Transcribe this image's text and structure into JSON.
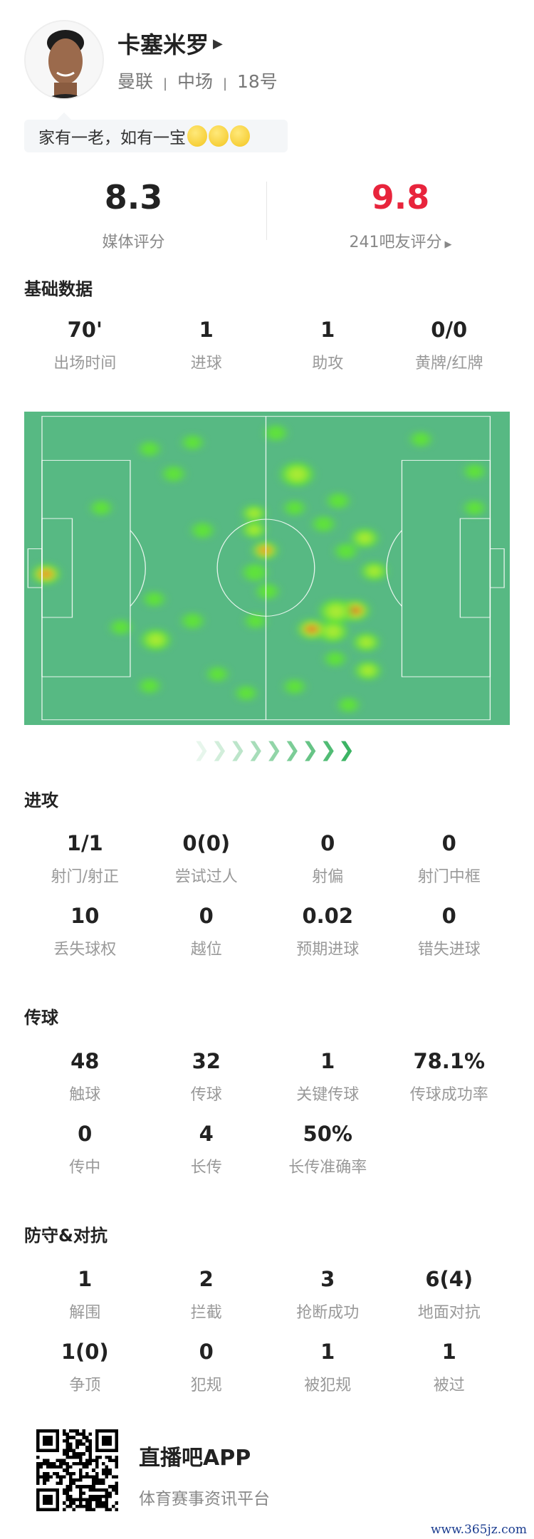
{
  "player": {
    "name": "卡塞米罗",
    "team": "曼联",
    "position": "中场",
    "number": "18号",
    "separator": "|",
    "quote": "家有一老，如有一宝",
    "quote_emoji_count": 3
  },
  "ratings": {
    "media_score": "8.3",
    "media_label": "媒体评分",
    "fan_score": "9.8",
    "fan_label": "241吧友评分",
    "fan_color": "#e8243c"
  },
  "sections": {
    "basic": {
      "title": "基础数据",
      "rows": [
        [
          {
            "value": "70'",
            "label": "出场时间"
          },
          {
            "value": "1",
            "label": "进球"
          },
          {
            "value": "1",
            "label": "助攻"
          },
          {
            "value": "0/0",
            "label": "黄牌/红牌"
          }
        ]
      ]
    },
    "attack": {
      "title": "进攻",
      "rows": [
        [
          {
            "value": "1/1",
            "label": "射门/射正"
          },
          {
            "value": "0(0)",
            "label": "尝试过人"
          },
          {
            "value": "0",
            "label": "射偏"
          },
          {
            "value": "0",
            "label": "射门中框"
          }
        ],
        [
          {
            "value": "10",
            "label": "丢失球权"
          },
          {
            "value": "0",
            "label": "越位"
          },
          {
            "value": "0.02",
            "label": "预期进球"
          },
          {
            "value": "0",
            "label": "错失进球"
          }
        ]
      ]
    },
    "passing": {
      "title": "传球",
      "rows": [
        [
          {
            "value": "48",
            "label": "触球"
          },
          {
            "value": "32",
            "label": "传球"
          },
          {
            "value": "1",
            "label": "关键传球"
          },
          {
            "value": "78.1%",
            "label": "传球成功率"
          }
        ],
        [
          {
            "value": "0",
            "label": "传中"
          },
          {
            "value": "4",
            "label": "长传"
          },
          {
            "value": "50%",
            "label": "长传准确率"
          }
        ]
      ]
    },
    "defense": {
      "title": "防守&对抗",
      "rows": [
        [
          {
            "value": "1",
            "label": "解围"
          },
          {
            "value": "2",
            "label": "拦截"
          },
          {
            "value": "3",
            "label": "抢断成功"
          },
          {
            "value": "6(4)",
            "label": "地面对抗"
          }
        ],
        [
          {
            "value": "1(0)",
            "label": "争顶"
          },
          {
            "value": "0",
            "label": "犯规"
          },
          {
            "value": "1",
            "label": "被犯规"
          },
          {
            "value": "1",
            "label": "被过"
          }
        ]
      ]
    }
  },
  "heatmap": {
    "pitch_color": "#57b983",
    "attack_direction": "right"
  },
  "footer": {
    "app_name": "直播吧APP",
    "tagline": "体育赛事资讯平台",
    "watermark": "www.365jz.com"
  }
}
